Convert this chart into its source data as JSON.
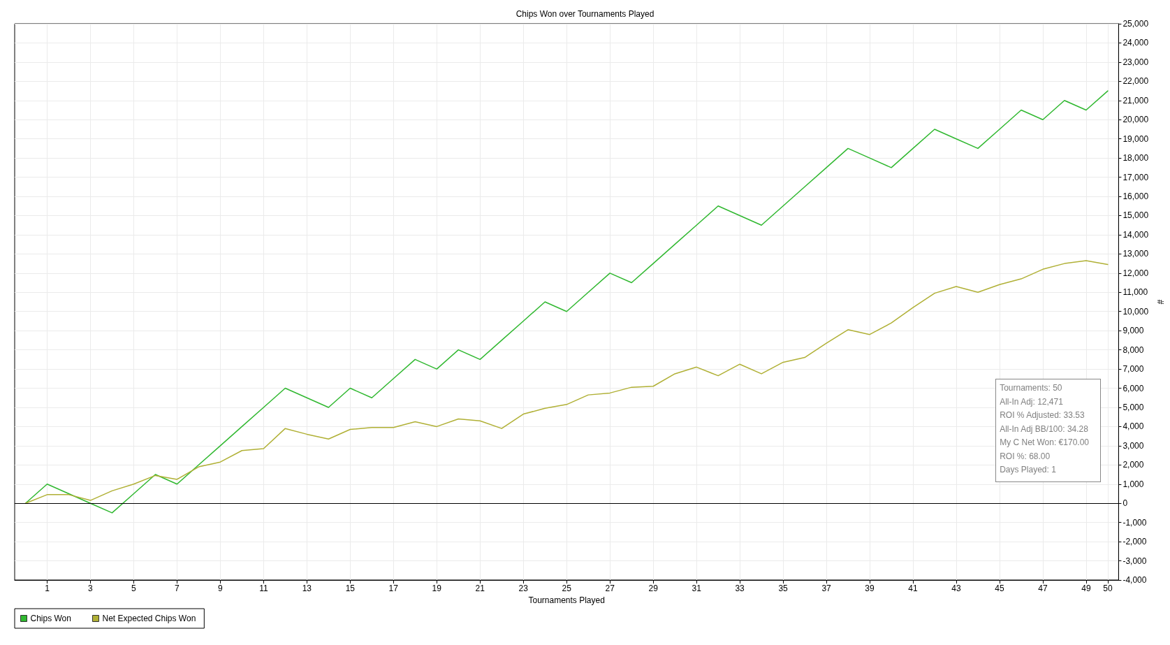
{
  "chart_data": {
    "type": "line",
    "title": "Chips Won over Tournaments Played",
    "xlabel": "Tournaments Played",
    "ylabel": "#",
    "x": [
      0,
      1,
      2,
      3,
      4,
      5,
      6,
      7,
      8,
      9,
      10,
      11,
      12,
      13,
      14,
      15,
      16,
      17,
      18,
      19,
      20,
      21,
      22,
      23,
      24,
      25,
      26,
      27,
      28,
      29,
      30,
      31,
      32,
      33,
      34,
      35,
      36,
      37,
      38,
      39,
      40,
      41,
      42,
      43,
      44,
      45,
      46,
      47,
      48,
      49,
      50
    ],
    "series": [
      {
        "name": "Chips Won",
        "color": "#30b830",
        "values": [
          0,
          1000,
          500,
          0,
          -500,
          500,
          1500,
          1000,
          2000,
          3000,
          4000,
          5000,
          6000,
          5500,
          5000,
          6000,
          5500,
          6500,
          7500,
          7000,
          8000,
          7500,
          8500,
          9500,
          10500,
          10000,
          11000,
          12000,
          11500,
          12500,
          13500,
          14500,
          15500,
          15000,
          14500,
          15500,
          16500,
          17500,
          18500,
          18000,
          17500,
          18500,
          19500,
          19000,
          18500,
          19500,
          20500,
          20000,
          21000,
          20500,
          21500
        ]
      },
      {
        "name": "Net Expected Chips Won",
        "color": "#b0b035",
        "values": [
          0,
          450,
          450,
          150,
          650,
          1000,
          1450,
          1250,
          1900,
          2150,
          2750,
          2850,
          3900,
          3600,
          3350,
          3850,
          3950,
          3950,
          4250,
          4000,
          4400,
          4300,
          3900,
          4650,
          4950,
          5150,
          5650,
          5750,
          6050,
          6100,
          6750,
          7100,
          6650,
          7250,
          6750,
          7350,
          7600,
          8350,
          9050,
          8800,
          9400,
          10200,
          10950,
          11300,
          11000,
          11400,
          11700,
          12200,
          12500,
          12650,
          12450
        ]
      }
    ],
    "xlim": [
      -0.5,
      50.5
    ],
    "xticks": [
      1,
      3,
      5,
      7,
      9,
      11,
      13,
      15,
      17,
      19,
      21,
      23,
      25,
      27,
      29,
      31,
      33,
      35,
      37,
      39,
      41,
      43,
      45,
      47,
      49,
      50
    ],
    "ylim": [
      -4000,
      25000
    ],
    "yticks": [
      {
        "value": -4000,
        "label": "-4,000"
      },
      {
        "value": -3000,
        "label": "-3,000"
      },
      {
        "value": -2000,
        "label": "-2,000"
      },
      {
        "value": -1000,
        "label": "-1,000"
      },
      0,
      {
        "value": 1000,
        "label": "1,000"
      },
      {
        "value": 2000,
        "label": "2,000"
      },
      {
        "value": 3000,
        "label": "3,000"
      },
      {
        "value": 4000,
        "label": "4,000"
      },
      {
        "value": 5000,
        "label": "5,000"
      },
      {
        "value": 6000,
        "label": "6,000"
      },
      {
        "value": 7000,
        "label": "7,000"
      },
      {
        "value": 8000,
        "label": "8,000"
      },
      {
        "value": 9000,
        "label": "9,000"
      },
      {
        "value": 10000,
        "label": "10,000"
      },
      {
        "value": 11000,
        "label": "11,000"
      },
      {
        "value": 12000,
        "label": "12,000"
      },
      {
        "value": 13000,
        "label": "13,000"
      },
      {
        "value": 14000,
        "label": "14,000"
      },
      {
        "value": 15000,
        "label": "15,000"
      },
      {
        "value": 16000,
        "label": "16,000"
      },
      {
        "value": 17000,
        "label": "17,000"
      },
      {
        "value": 18000,
        "label": "18,000"
      },
      {
        "value": 19000,
        "label": "19,000"
      },
      {
        "value": 20000,
        "label": "20,000"
      },
      {
        "value": 21000,
        "label": "21,000"
      },
      {
        "value": 22000,
        "label": "22,000"
      },
      {
        "value": 23000,
        "label": "23,000"
      },
      {
        "value": 24000,
        "label": "24,000"
      },
      {
        "value": 25000,
        "label": "25,000"
      }
    ],
    "ref_lines": [
      {
        "axis": "y",
        "value": 0,
        "color": "#000000"
      }
    ],
    "annotations": [
      "Tournaments: 50",
      "All-In Adj: 12,471",
      "ROI % Adjusted: 33.53",
      "All-In Adj BB/100: 34.28",
      "My C Net Won: €170.00",
      "ROI %: 68.00",
      "Days Played: 1"
    ],
    "grid": true,
    "legend": "bottom left",
    "marker": "none"
  }
}
